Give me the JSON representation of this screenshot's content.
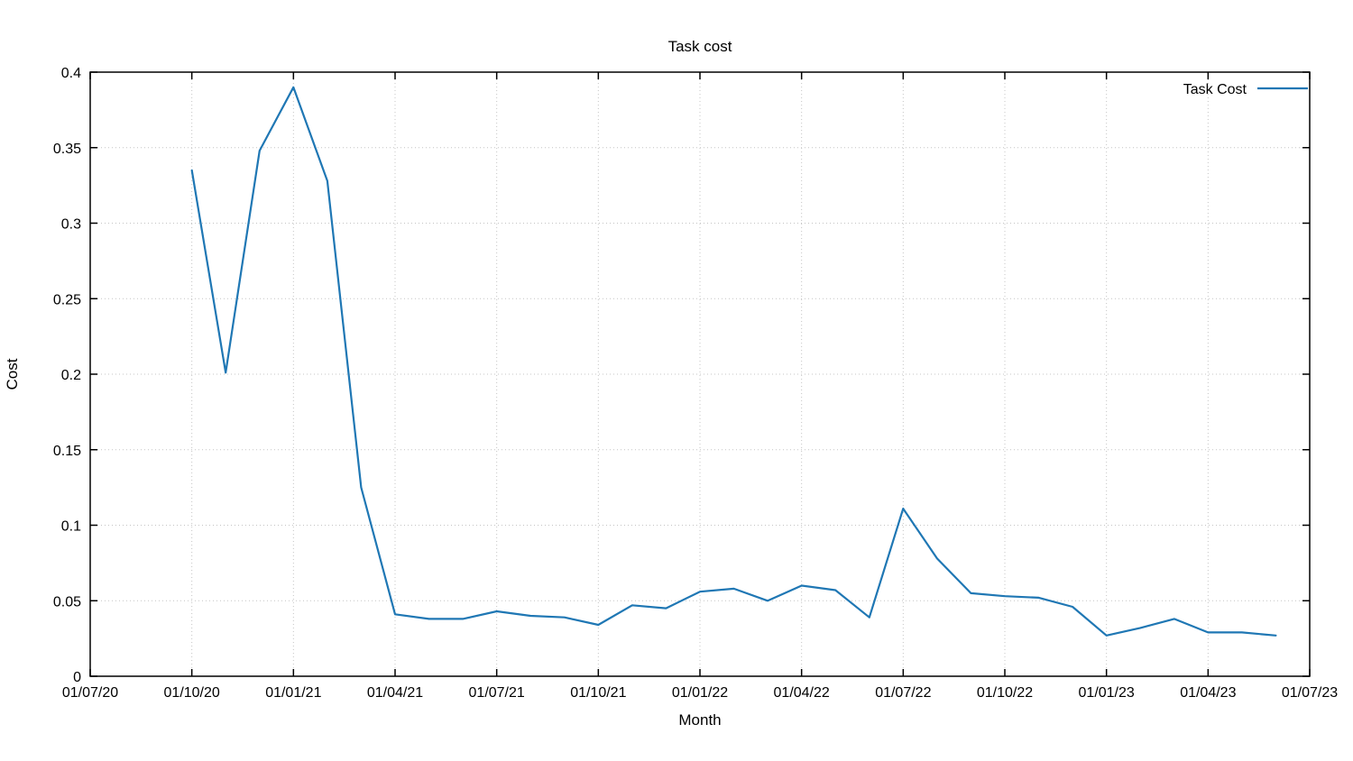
{
  "chart_data": {
    "type": "line",
    "title": "Task cost",
    "xlabel": "Month",
    "ylabel": "Cost",
    "ylim": [
      0,
      0.4
    ],
    "ytick_step": 0.05,
    "ytick_labels": [
      "0",
      "0.05",
      "0.1",
      "0.15",
      "0.2",
      "0.25",
      "0.3",
      "0.35",
      "0.4"
    ],
    "x_range_months": [
      0,
      36
    ],
    "xtick_month_offsets": [
      0,
      3,
      6,
      9,
      12,
      15,
      18,
      21,
      24,
      27,
      30,
      33,
      36
    ],
    "xtick_labels": [
      "01/07/20",
      "01/10/20",
      "01/01/21",
      "01/04/21",
      "01/07/21",
      "01/10/21",
      "01/01/22",
      "01/04/22",
      "01/07/22",
      "01/10/22",
      "01/01/23",
      "01/04/23",
      "01/07/23"
    ],
    "grid": true,
    "legend_position": "top-right",
    "series": [
      {
        "name": "Task Cost",
        "color": "#1f77b4",
        "x_month_offsets": [
          3,
          4,
          5,
          6,
          7,
          8,
          9,
          10,
          11,
          12,
          13,
          14,
          15,
          16,
          17,
          18,
          19,
          20,
          21,
          22,
          23,
          24,
          25,
          26,
          27,
          28,
          29,
          30,
          31,
          32,
          33,
          34,
          35
        ],
        "values": [
          0.335,
          0.201,
          0.348,
          0.39,
          0.328,
          0.125,
          0.041,
          0.038,
          0.038,
          0.043,
          0.04,
          0.039,
          0.034,
          0.047,
          0.045,
          0.056,
          0.058,
          0.05,
          0.06,
          0.057,
          0.039,
          0.111,
          0.078,
          0.055,
          0.053,
          0.052,
          0.046,
          0.027,
          0.032,
          0.038,
          0.029,
          0.029,
          0.027
        ]
      }
    ]
  }
}
